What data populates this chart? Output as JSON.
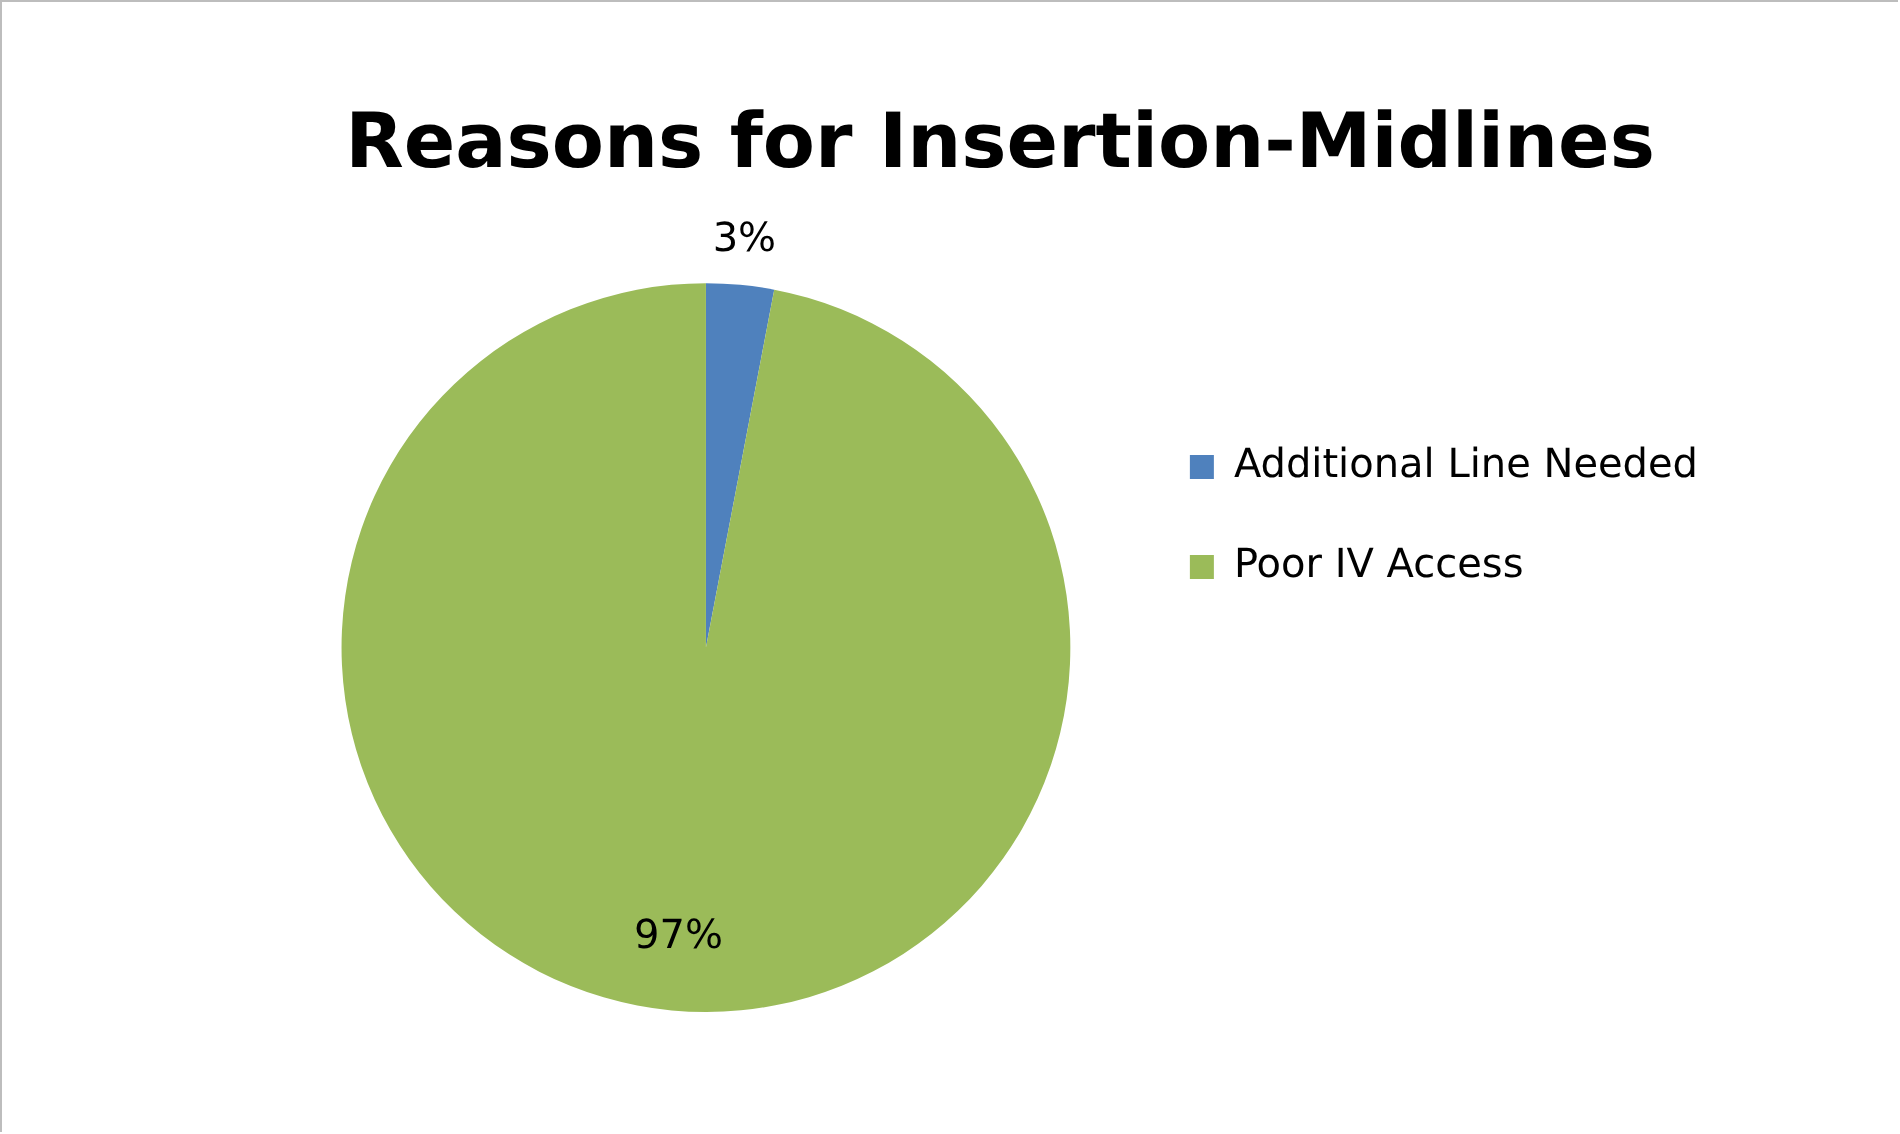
{
  "chart_data": {
    "type": "pie",
    "title": "Reasons for Insertion-Midlines",
    "categories": [
      "Additional Line Needed",
      "Poor IV Access"
    ],
    "values": [
      3,
      97
    ],
    "value_labels": [
      "3%",
      "97%"
    ],
    "colors": [
      "#4f81bd",
      "#9bbb59"
    ],
    "legend": "right"
  }
}
